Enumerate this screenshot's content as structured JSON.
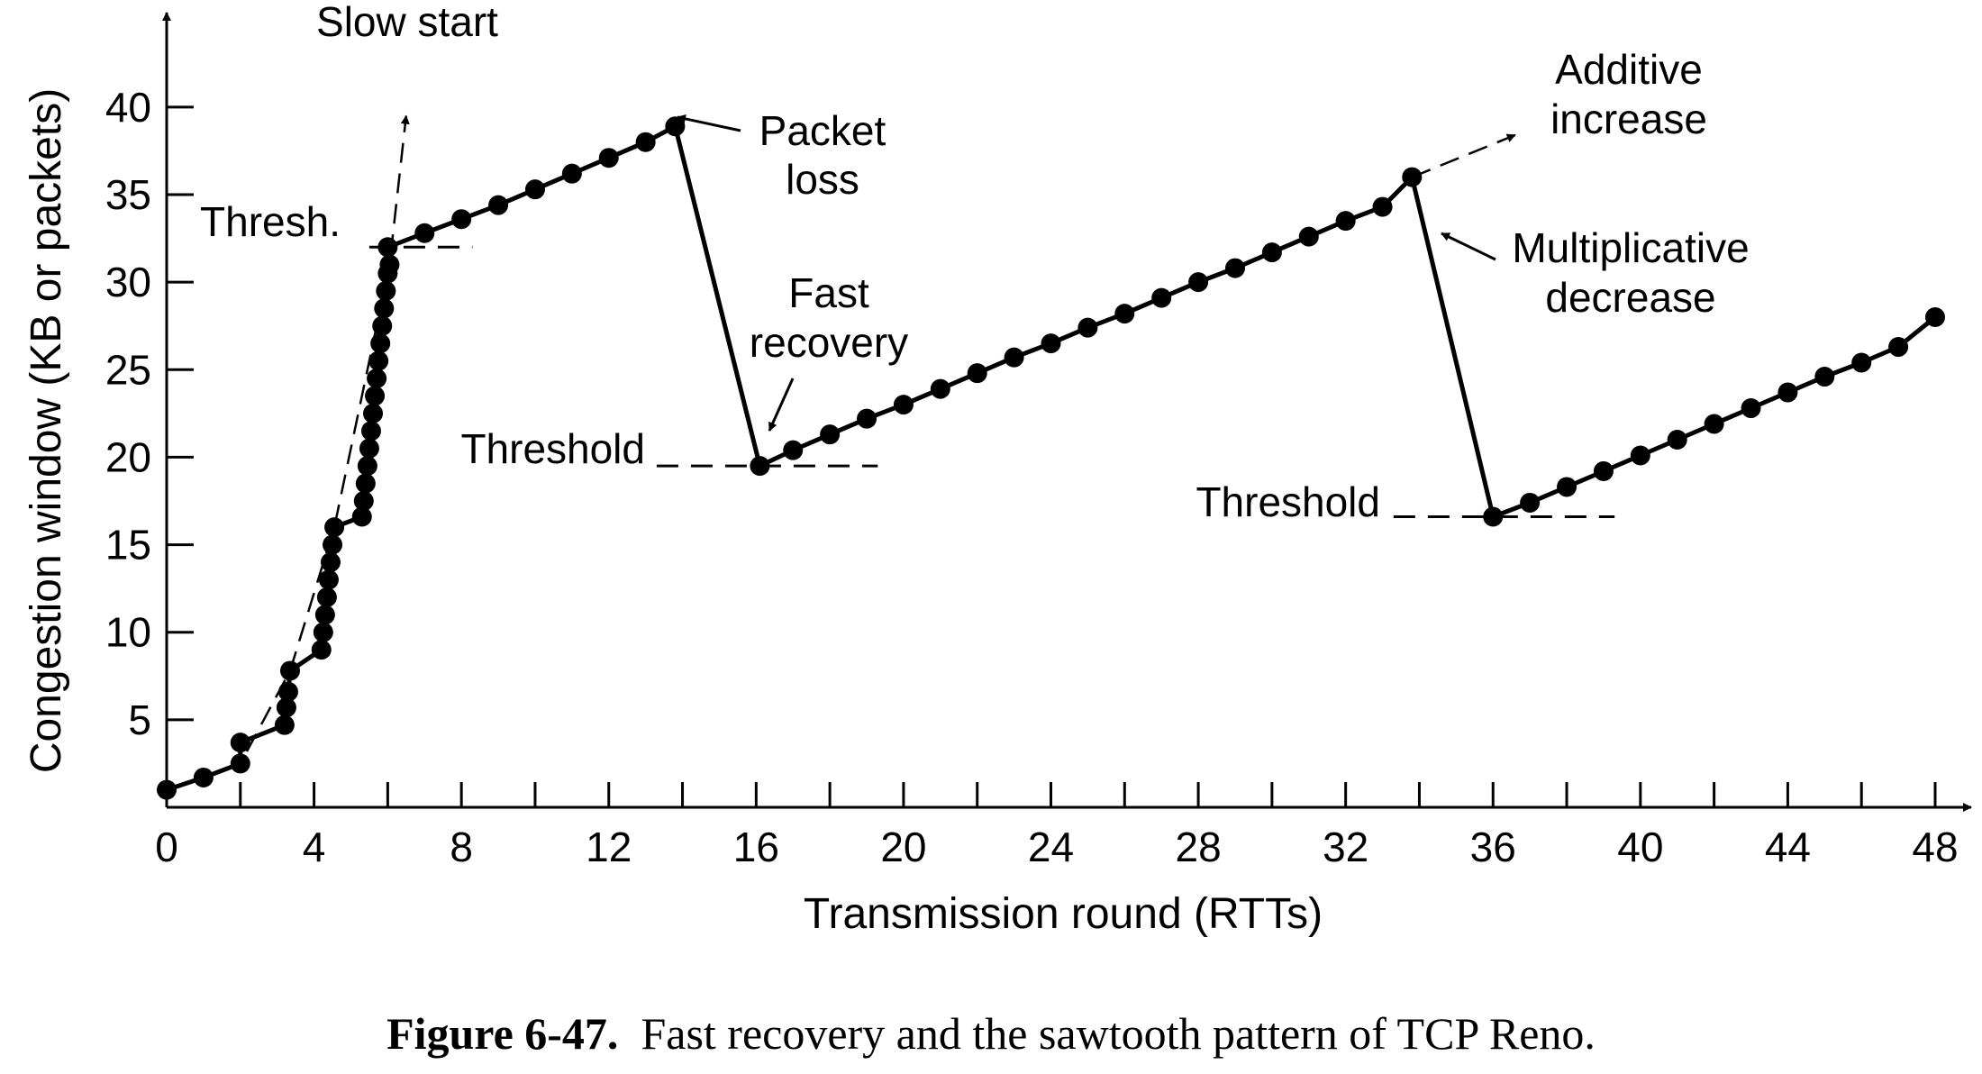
{
  "chart_data": {
    "type": "line",
    "xlabel": "Transmission round (RTTs)",
    "ylabel": "Congestion window (KB or packets)",
    "xlim": [
      0,
      48
    ],
    "ylim": [
      0,
      42
    ],
    "x_ticks": [
      0,
      4,
      8,
      12,
      16,
      20,
      24,
      28,
      32,
      36,
      40,
      44,
      48
    ],
    "y_ticks": [
      5,
      10,
      15,
      20,
      25,
      30,
      35,
      40
    ],
    "minor_x_ticks_every": 2,
    "grid": false,
    "series": [
      {
        "style": "solid line with filled circle markers",
        "points": [
          [
            0,
            1
          ],
          [
            1,
            1.7
          ],
          [
            2,
            2.5
          ],
          [
            2,
            3.7
          ],
          [
            3.2,
            4.7
          ],
          [
            3.25,
            5.7
          ],
          [
            3.3,
            6.6
          ],
          [
            3.35,
            7.8
          ],
          [
            4.2,
            9
          ],
          [
            4.25,
            10
          ],
          [
            4.3,
            11
          ],
          [
            4.35,
            12
          ],
          [
            4.4,
            13
          ],
          [
            4.45,
            14
          ],
          [
            4.5,
            15
          ],
          [
            4.55,
            16
          ],
          [
            5.3,
            16.6
          ],
          [
            5.35,
            17.5
          ],
          [
            5.4,
            18.5
          ],
          [
            5.45,
            19.5
          ],
          [
            5.5,
            20.5
          ],
          [
            5.55,
            21.5
          ],
          [
            5.6,
            22.5
          ],
          [
            5.65,
            23.5
          ],
          [
            5.7,
            24.5
          ],
          [
            5.75,
            25.5
          ],
          [
            5.8,
            26.5
          ],
          [
            5.85,
            27.5
          ],
          [
            5.9,
            28.5
          ],
          [
            5.95,
            29.5
          ],
          [
            6.0,
            30.5
          ],
          [
            6.05,
            31
          ],
          [
            6,
            32
          ],
          [
            7,
            32.8
          ],
          [
            8,
            33.6
          ],
          [
            9,
            34.4
          ],
          [
            10,
            35.3
          ],
          [
            11,
            36.2
          ],
          [
            12,
            37.1
          ],
          [
            13,
            38
          ],
          [
            13.8,
            38.9
          ],
          [
            16.1,
            19.5
          ],
          [
            17,
            20.4
          ],
          [
            18,
            21.3
          ],
          [
            19,
            22.2
          ],
          [
            20,
            23
          ],
          [
            21,
            23.9
          ],
          [
            22,
            24.8
          ],
          [
            23,
            25.7
          ],
          [
            24,
            26.5
          ],
          [
            25,
            27.4
          ],
          [
            26,
            28.2
          ],
          [
            27,
            29.1
          ],
          [
            28,
            30
          ],
          [
            29,
            30.8
          ],
          [
            30,
            31.7
          ],
          [
            31,
            32.6
          ],
          [
            32,
            33.5
          ],
          [
            33,
            34.3
          ],
          [
            33.8,
            36
          ],
          [
            36,
            16.6
          ],
          [
            37,
            17.4
          ],
          [
            38,
            18.3
          ],
          [
            39,
            19.2
          ],
          [
            40,
            20.1
          ],
          [
            41,
            21
          ],
          [
            42,
            21.9
          ],
          [
            43,
            22.8
          ],
          [
            44,
            23.7
          ],
          [
            45,
            24.6
          ],
          [
            46,
            25.4
          ],
          [
            47,
            26.3
          ],
          [
            48,
            28
          ]
        ]
      },
      {
        "style": "dashed line, slow start exponential extension",
        "points": [
          [
            0,
            1
          ],
          [
            2,
            2.5
          ],
          [
            3.35,
            7.8
          ],
          [
            4.55,
            16
          ],
          [
            6.05,
            31
          ],
          [
            6.5,
            39.5
          ]
        ]
      },
      {
        "style": "dashed line, additive increase extension",
        "points": [
          [
            33.8,
            36
          ],
          [
            36.6,
            38.4
          ]
        ]
      }
    ],
    "threshold_lines": [
      {
        "y": 32,
        "x_range": [
          5.5,
          8.3
        ]
      },
      {
        "y": 19.5,
        "x_range": [
          13.3,
          19.3
        ]
      },
      {
        "y": 16.6,
        "x_range": [
          33.3,
          39.3
        ]
      }
    ],
    "annotations": {
      "slow_start": "Slow start",
      "thresh_1": "Thresh.",
      "packet_loss_1": "Packet",
      "packet_loss_2": "loss",
      "fast_recovery_1": "Fast",
      "fast_recovery_2": "recovery",
      "threshold_2": "Threshold",
      "additive_1": "Additive",
      "additive_2": "increase",
      "multiplicative_1": "Multiplicative",
      "multiplicative_2": "decrease",
      "threshold_3": "Threshold"
    }
  },
  "caption": {
    "label": "Figure 6-47.",
    "text": "Fast recovery and the sawtooth pattern of TCP Reno."
  }
}
